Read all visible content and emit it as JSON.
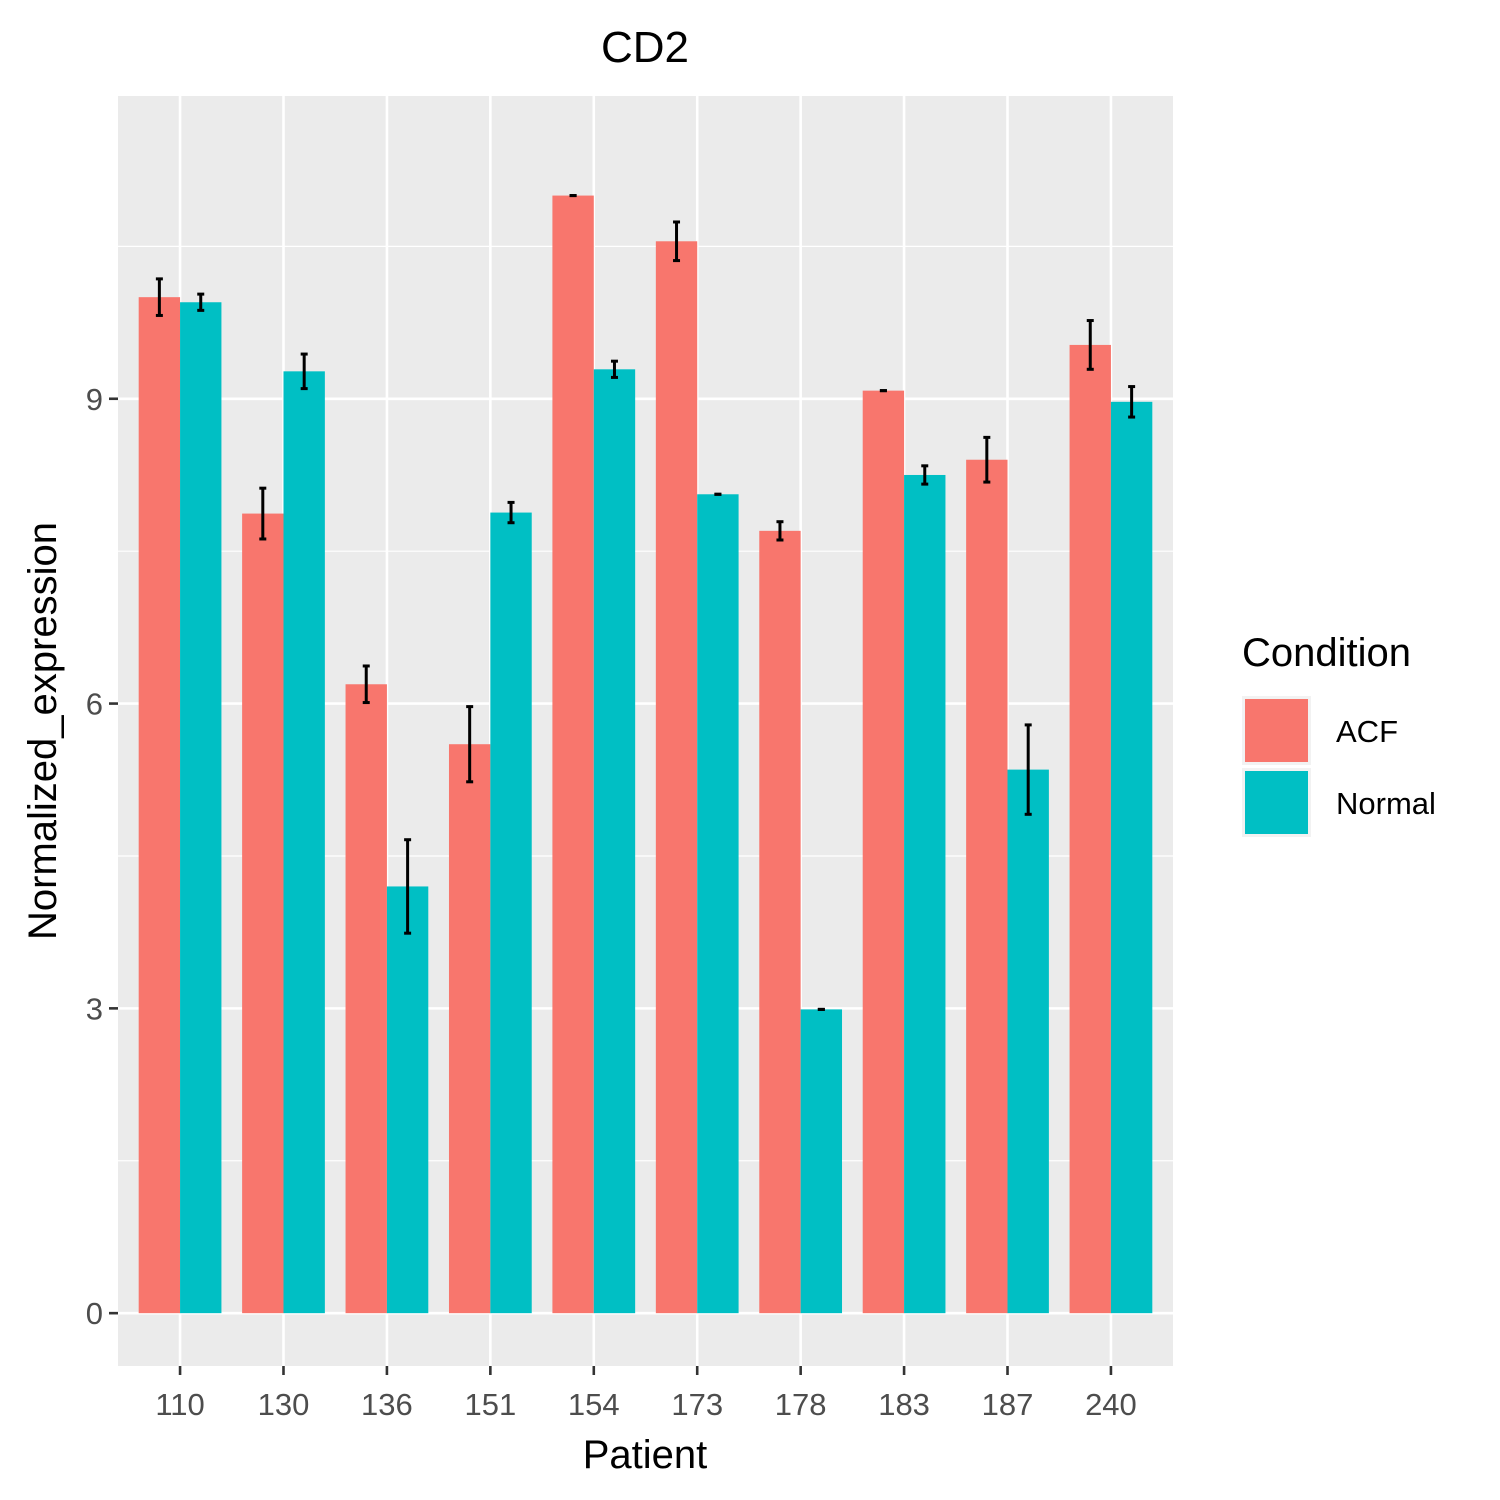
{
  "chart_data": {
    "type": "bar",
    "title": "CD2",
    "xlabel": "Patient",
    "ylabel": "Normalized_expression",
    "categories": [
      "110",
      "130",
      "136",
      "151",
      "154",
      "173",
      "178",
      "183",
      "187",
      "240"
    ],
    "ylim": [
      -0.52,
      11.98
    ],
    "yticks": [
      0,
      3,
      6,
      9
    ],
    "grid": true,
    "legend": {
      "title": "Condition",
      "placement": "right"
    },
    "series": [
      {
        "name": "ACF",
        "color": "#F8766D",
        "values": [
          10.0,
          7.87,
          6.19,
          5.6,
          11.0,
          10.55,
          7.7,
          9.08,
          8.4,
          9.53
        ],
        "errors": [
          0.18,
          0.25,
          0.18,
          0.37,
          0.0,
          0.19,
          0.09,
          0.0,
          0.22,
          0.24
        ]
      },
      {
        "name": "Normal",
        "color": "#00BFC4",
        "values": [
          9.95,
          9.27,
          4.2,
          7.88,
          9.29,
          8.06,
          2.99,
          8.25,
          5.35,
          8.97
        ],
        "errors": [
          0.08,
          0.17,
          0.46,
          0.1,
          0.08,
          0.0,
          0.0,
          0.09,
          0.44,
          0.15
        ]
      }
    ]
  }
}
